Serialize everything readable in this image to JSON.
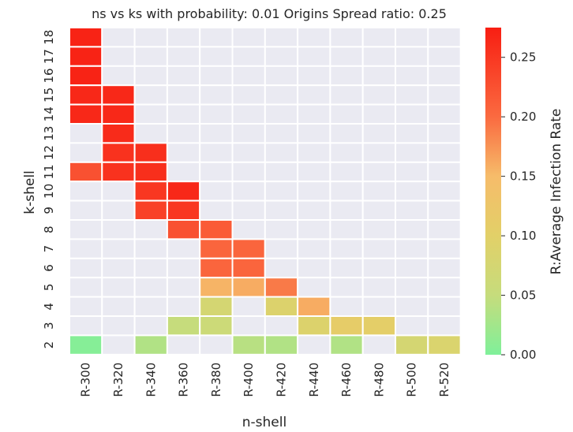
{
  "chart_data": {
    "type": "heatmap",
    "title": "ns vs ks  with probability: 0.01 Origins Spread ratio: 0.25",
    "xlabel": "n-shell",
    "ylabel": "k-shell",
    "x_categories": [
      "R-300",
      "R-320",
      "R-340",
      "R-360",
      "R-380",
      "R-400",
      "R-420",
      "R-440",
      "R-460",
      "R-480",
      "R-500",
      "R-520"
    ],
    "y_categories": [
      "18",
      "17",
      "16",
      "15",
      "14",
      "13",
      "12",
      "11",
      "10",
      "9",
      "8",
      "7",
      "6",
      "5",
      "4",
      "3",
      "2"
    ],
    "colorbar": {
      "label": "R:Average Infection Rate",
      "range": [
        0,
        0.275
      ],
      "ticks": [
        "0.00",
        "0.05",
        "0.10",
        "0.15",
        "0.20",
        "0.25"
      ],
      "tick_values": [
        0,
        0.05,
        0.1,
        0.15,
        0.2,
        0.25
      ],
      "color_stops": [
        {
          "value": 0.0,
          "color": "#7ff09a"
        },
        {
          "value": 0.05,
          "color": "#c6dc7c"
        },
        {
          "value": 0.1,
          "color": "#e2d068"
        },
        {
          "value": 0.15,
          "color": "#f6bc6a"
        },
        {
          "value": 0.2,
          "color": "#fa6a40"
        },
        {
          "value": 0.275,
          "color": "#f81e12"
        }
      ]
    },
    "missing_color": "#eaeaf2",
    "grid_line_color": "#ffffff",
    "values": [
      [
        0.27,
        null,
        null,
        null,
        null,
        null,
        null,
        null,
        null,
        null,
        null,
        null
      ],
      [
        0.27,
        null,
        null,
        null,
        null,
        null,
        null,
        null,
        null,
        null,
        null,
        null
      ],
      [
        0.27,
        null,
        null,
        null,
        null,
        null,
        null,
        null,
        null,
        null,
        null,
        null
      ],
      [
        0.265,
        0.265,
        null,
        null,
        null,
        null,
        null,
        null,
        null,
        null,
        null,
        null
      ],
      [
        0.265,
        0.265,
        null,
        null,
        null,
        null,
        null,
        null,
        null,
        null,
        null,
        null
      ],
      [
        null,
        0.262,
        null,
        null,
        null,
        null,
        null,
        null,
        null,
        null,
        null,
        null
      ],
      [
        null,
        0.255,
        0.258,
        null,
        null,
        null,
        null,
        null,
        null,
        null,
        null,
        null
      ],
      [
        0.225,
        0.255,
        0.258,
        null,
        null,
        null,
        null,
        null,
        null,
        null,
        null,
        null
      ],
      [
        null,
        null,
        0.25,
        0.265,
        null,
        null,
        null,
        null,
        null,
        null,
        null,
        null
      ],
      [
        null,
        null,
        0.24,
        0.25,
        null,
        null,
        null,
        null,
        null,
        null,
        null,
        null
      ],
      [
        null,
        null,
        null,
        0.225,
        0.215,
        null,
        null,
        null,
        null,
        null,
        null,
        null
      ],
      [
        null,
        null,
        null,
        null,
        0.205,
        0.205,
        null,
        null,
        null,
        null,
        null,
        null
      ],
      [
        null,
        null,
        null,
        null,
        0.205,
        0.205,
        null,
        null,
        null,
        null,
        null,
        null
      ],
      [
        null,
        null,
        null,
        null,
        0.155,
        0.16,
        0.19,
        null,
        null,
        null,
        null,
        null
      ],
      [
        null,
        null,
        null,
        null,
        0.075,
        null,
        0.09,
        0.16,
        null,
        null,
        null,
        null
      ],
      [
        null,
        null,
        null,
        0.05,
        0.06,
        null,
        null,
        0.09,
        0.11,
        0.105,
        null,
        null
      ],
      [
        0.005,
        null,
        0.035,
        null,
        null,
        0.04,
        0.035,
        null,
        0.035,
        null,
        0.075,
        0.085
      ]
    ]
  }
}
